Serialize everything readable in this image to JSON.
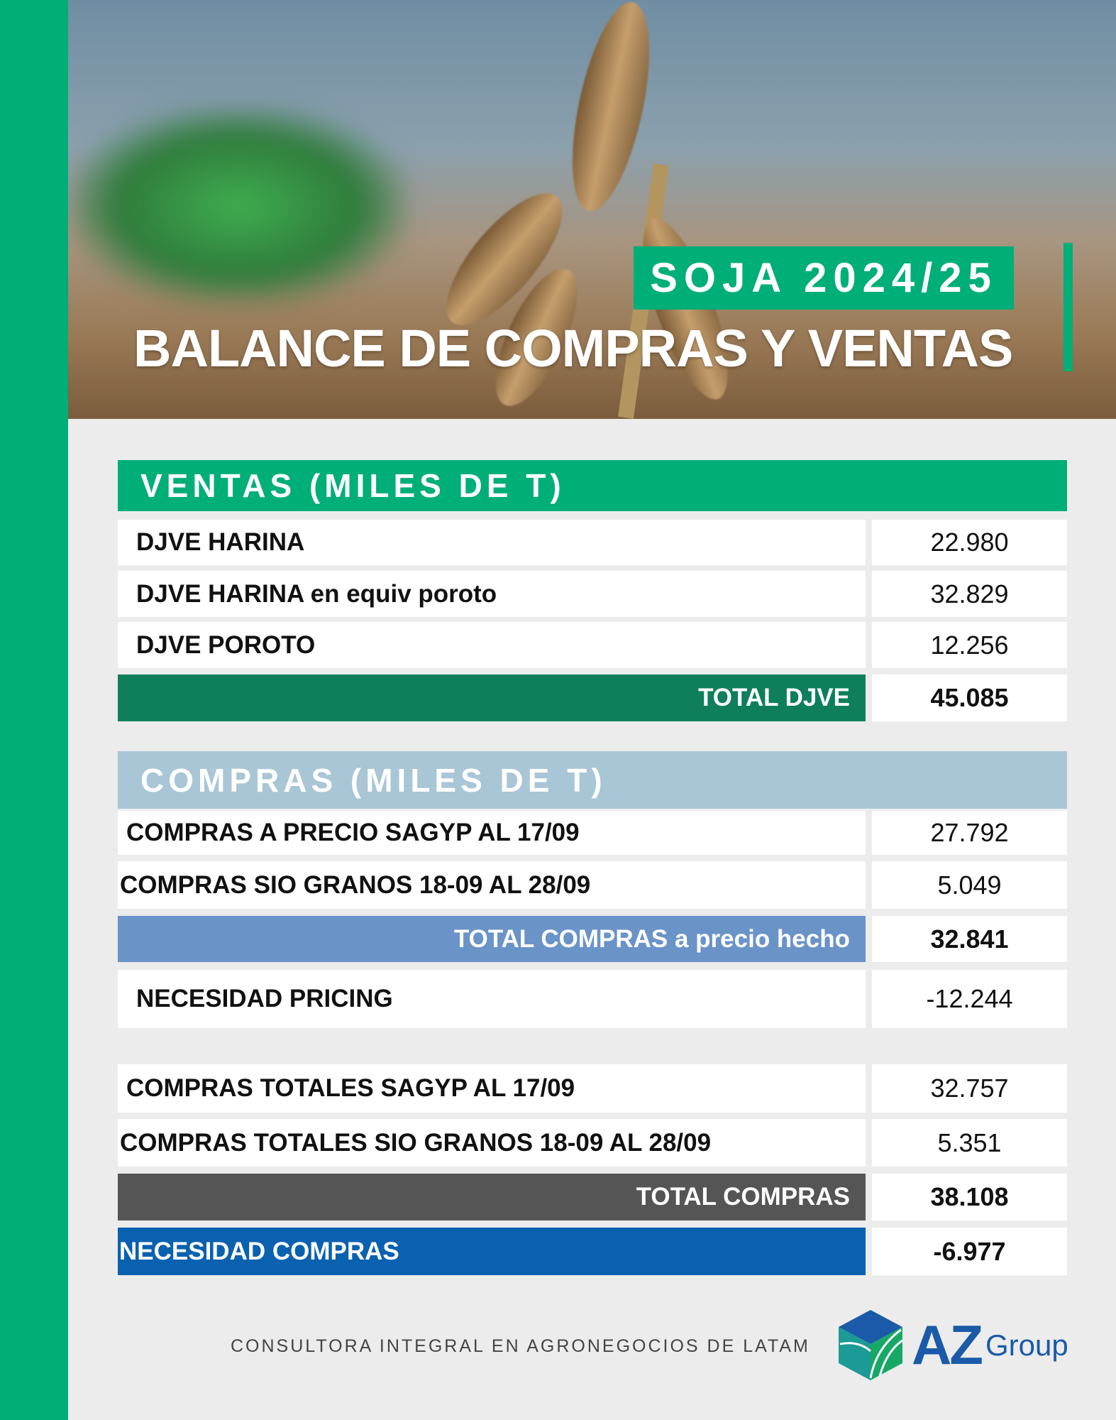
{
  "header": {
    "badge": "SOJA 2024/25",
    "title": "BALANCE DE COMPRAS Y VENTAS"
  },
  "ventas": {
    "title": "VENTAS (MILES DE T)",
    "rows": [
      {
        "label": "DJVE HARINA",
        "value": "22.980"
      },
      {
        "label": "DJVE HARINA en equiv poroto",
        "value": "32.829"
      },
      {
        "label": "DJVE POROTO",
        "value": "12.256"
      }
    ],
    "total": {
      "label": "TOTAL DJVE",
      "value": "45.085"
    }
  },
  "compras": {
    "title": "COMPRAS (MILES DE T)",
    "rows": [
      {
        "label": "COMPRAS A PRECIO SAGYP AL 17/09",
        "value": "27.792"
      },
      {
        "label": "COMPRAS SIO GRANOS 18-09 AL 28/09",
        "value": "5.049"
      }
    ],
    "total": {
      "label": "TOTAL COMPRAS a precio hecho",
      "value": "32.841"
    },
    "necesidad_pricing": {
      "label": "NECESIDAD PRICING",
      "value": "-12.244"
    },
    "rows2": [
      {
        "label": "COMPRAS TOTALES SAGYP AL 17/09",
        "value": "32.757"
      },
      {
        "label": "COMPRAS TOTALES SIO GRANOS 18-09 AL 28/09",
        "value": "5.351"
      }
    ],
    "total2": {
      "label": "TOTAL COMPRAS",
      "value": "38.108"
    },
    "necesidad_compras": {
      "label": "NECESIDAD COMPRAS",
      "value": "-6.977"
    }
  },
  "footer": {
    "tagline": "CONSULTORA INTEGRAL EN AGRONEGOCIOS DE LATAM",
    "logo_text": "AZ",
    "logo_sub": "Group"
  },
  "colors": {
    "brand_green": "#00ae78",
    "total_djve": "#0f7f5b",
    "compras_header": "#a9c6d6",
    "total_compras_precio": "#6a93c8",
    "total_compras": "#555555",
    "necesidad_compras": "#0a61b0"
  }
}
